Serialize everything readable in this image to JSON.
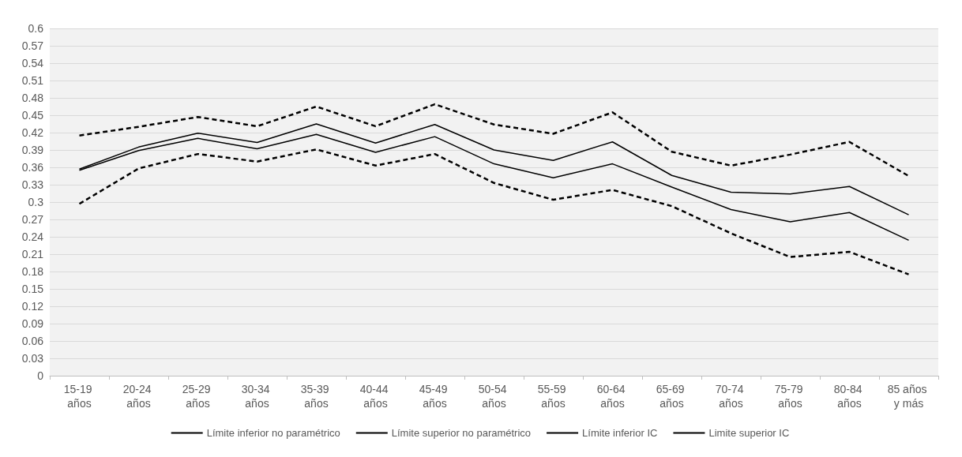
{
  "chart_data": {
    "type": "line",
    "categories": [
      "15-19 años",
      "20-24 años",
      "25-29 años",
      "30-34 años",
      "35-39 años",
      "40-44 años",
      "45-49 años",
      "50-54 años",
      "55-59 años",
      "60-64 años",
      "65-69 años",
      "70-74 años",
      "75-79 años",
      "80-84 años",
      "85 años y más"
    ],
    "series": [
      {
        "name": "Límite inferior no paramétrico",
        "color": "#000000",
        "line_style": "solid",
        "values": [
          0.355,
          0.389,
          0.41,
          0.392,
          0.417,
          0.386,
          0.413,
          0.366,
          0.342,
          0.366,
          0.326,
          0.287,
          0.266,
          0.282,
          0.234
        ]
      },
      {
        "name": "Límite superior no paramétrico",
        "color": "#000000",
        "line_style": "solid",
        "values": [
          0.357,
          0.395,
          0.419,
          0.403,
          0.435,
          0.402,
          0.434,
          0.39,
          0.372,
          0.404,
          0.346,
          0.317,
          0.314,
          0.327,
          0.278
        ]
      },
      {
        "name": "Límite inferior IC",
        "color": "#000000",
        "line_style": "dashed",
        "values": [
          0.297,
          0.358,
          0.383,
          0.37,
          0.391,
          0.363,
          0.383,
          0.333,
          0.304,
          0.321,
          0.293,
          0.246,
          0.205,
          0.214,
          0.175
        ]
      },
      {
        "name": "Limite superior IC",
        "color": "#000000",
        "line_style": "dashed",
        "values": [
          0.415,
          0.43,
          0.447,
          0.431,
          0.465,
          0.431,
          0.469,
          0.434,
          0.418,
          0.455,
          0.387,
          0.363,
          0.382,
          0.404,
          0.345
        ]
      }
    ],
    "ylim": [
      0,
      0.6
    ],
    "yticks": [
      0,
      0.03,
      0.06,
      0.09,
      0.12,
      0.15,
      0.18,
      0.21,
      0.24,
      0.27,
      0.3,
      0.33,
      0.36,
      0.39,
      0.42,
      0.45,
      0.48,
      0.51,
      0.54,
      0.57,
      0.6
    ],
    "grid": "y",
    "legend": "bottom",
    "marker": "none"
  }
}
